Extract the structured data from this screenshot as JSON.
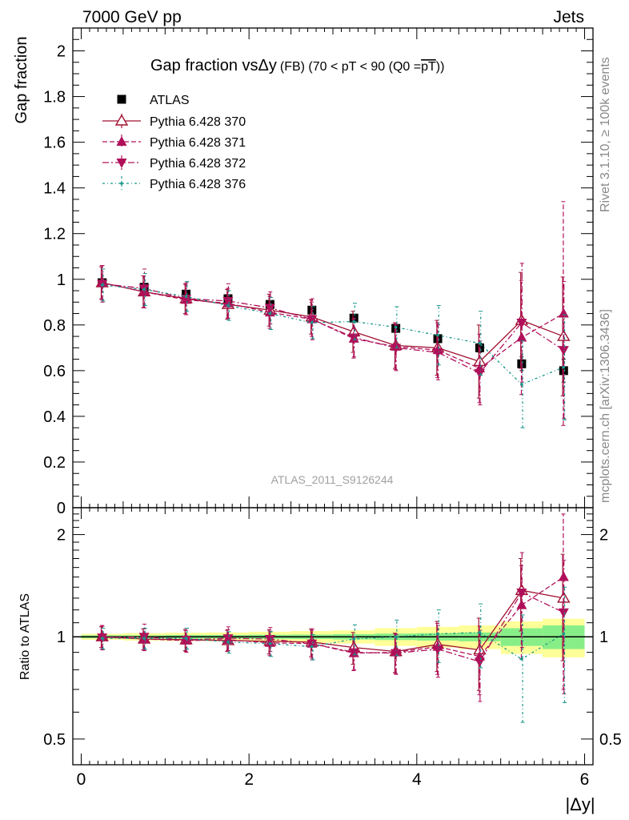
{
  "header": {
    "left": "7000 GeV pp",
    "right": "Jets"
  },
  "side_labels": {
    "rivet": "Rivet 3.1.10, ≥ 100k events",
    "mcplots": "mcplots.cern.ch [arXiv:1306.3436]"
  },
  "watermark": "ATLAS_2011_S9126244",
  "title": {
    "main": "Gap fraction vsΔy",
    "sub": "(FB) (70 < pT <  90 (Q0 =",
    "overlined": "pT",
    "close": "))"
  },
  "legend": [
    "ATLAS",
    "Pythia 6.428 370",
    "Pythia 6.428 371",
    "Pythia 6.428 372",
    "Pythia 6.428 376"
  ],
  "colors": {
    "data": "#000000",
    "p370": "#a01030",
    "p371": "#b0105a",
    "p372": "#b0105a",
    "p376": "#18968a",
    "band_outer": "#ffff99",
    "band_inner": "#88ee88"
  },
  "chart_data": [
    {
      "type": "scatter",
      "ylabel": "Gap fraction",
      "xlim": [
        -0.1,
        6.1
      ],
      "ylim": [
        0,
        2.1
      ],
      "y_ticks": [
        "0",
        "0.2",
        "0.4",
        "0.6",
        "0.8",
        "1",
        "1.2",
        "1.4",
        "1.6",
        "1.8",
        "2"
      ],
      "x": [
        0.25,
        0.75,
        1.25,
        1.75,
        2.25,
        2.75,
        3.25,
        3.75,
        4.25,
        4.75,
        5.25,
        5.75
      ],
      "series": [
        {
          "name": "ATLAS",
          "values": [
            0.985,
            0.965,
            0.935,
            0.915,
            0.89,
            0.865,
            0.83,
            0.785,
            0.74,
            0.7,
            0.63,
            0.6
          ],
          "err": [
            0.01,
            0.01,
            0.01,
            0.01,
            0.01,
            0.01,
            0.012,
            0.012,
            0.015,
            0.02,
            0.03,
            0.05
          ]
        },
        {
          "name": "Pythia 6.428 370",
          "values": [
            0.985,
            0.945,
            0.915,
            0.89,
            0.865,
            0.835,
            0.77,
            0.71,
            0.7,
            0.64,
            0.82,
            0.75
          ],
          "err": [
            0.07,
            0.07,
            0.065,
            0.065,
            0.07,
            0.075,
            0.09,
            0.1,
            0.12,
            0.16,
            0.21,
            0.26
          ]
        },
        {
          "name": "Pythia 6.428 371",
          "values": [
            0.985,
            0.945,
            0.91,
            0.895,
            0.855,
            0.825,
            0.74,
            0.705,
            0.69,
            0.61,
            0.745,
            0.85
          ],
          "err": [
            0.075,
            0.07,
            0.065,
            0.065,
            0.07,
            0.075,
            0.085,
            0.1,
            0.12,
            0.15,
            0.25,
            0.49
          ]
        },
        {
          "name": "Pythia 6.428 372",
          "values": [
            0.98,
            0.96,
            0.915,
            0.905,
            0.875,
            0.825,
            0.745,
            0.7,
            0.68,
            0.59,
            0.81,
            0.69
          ],
          "err": [
            0.08,
            0.085,
            0.07,
            0.075,
            0.07,
            0.09,
            0.085,
            0.1,
            0.12,
            0.14,
            0.26,
            0.3
          ]
        },
        {
          "name": "Pythia 6.428 376",
          "values": [
            0.975,
            0.955,
            0.925,
            0.885,
            0.85,
            0.81,
            0.815,
            0.79,
            0.755,
            0.72,
            0.54,
            0.615
          ],
          "err": [
            0.07,
            0.07,
            0.065,
            0.065,
            0.07,
            0.07,
            0.08,
            0.09,
            0.13,
            0.14,
            0.19,
            0.23
          ]
        }
      ]
    },
    {
      "type": "scatter",
      "ylabel": "Ratio to ATLAS",
      "xlabel": "|Δy|",
      "xlim": [
        -0.1,
        6.1
      ],
      "ylim": [
        0.42,
        2.4
      ],
      "yscale": "log",
      "y_ticks": [
        "0.5",
        "1",
        "2"
      ],
      "x_ticks": [
        "0",
        "2",
        "4",
        "6"
      ],
      "x": [
        0.25,
        0.75,
        1.25,
        1.75,
        2.25,
        2.75,
        3.25,
        3.75,
        4.25,
        4.75,
        5.25,
        5.75
      ],
      "band_inner": [
        0.01,
        0.01,
        0.012,
        0.012,
        0.014,
        0.015,
        0.018,
        0.022,
        0.025,
        0.03,
        0.06,
        0.08
      ],
      "band_outer": [
        0.02,
        0.025,
        0.028,
        0.03,
        0.035,
        0.04,
        0.045,
        0.06,
        0.07,
        0.08,
        0.11,
        0.13
      ],
      "series": [
        {
          "name": "Pythia 6.428 370",
          "values": [
            1.0,
            0.985,
            0.98,
            0.975,
            0.97,
            0.965,
            0.93,
            0.905,
            0.95,
            0.915,
            1.37,
            1.3
          ],
          "err": [
            0.07,
            0.07,
            0.07,
            0.07,
            0.08,
            0.09,
            0.1,
            0.12,
            0.16,
            0.22,
            0.33,
            0.45
          ]
        },
        {
          "name": "Pythia 6.428 371",
          "values": [
            1.0,
            0.985,
            0.975,
            0.98,
            0.96,
            0.955,
            0.895,
            0.9,
            0.935,
            0.875,
            1.24,
            1.5
          ],
          "err": [
            0.08,
            0.07,
            0.07,
            0.07,
            0.08,
            0.09,
            0.1,
            0.12,
            0.16,
            0.2,
            0.38,
            0.8
          ]
        },
        {
          "name": "Pythia 6.428 372",
          "values": [
            0.995,
            1.0,
            0.98,
            0.99,
            0.985,
            0.955,
            0.9,
            0.895,
            0.92,
            0.845,
            1.35,
            1.18
          ],
          "err": [
            0.08,
            0.09,
            0.08,
            0.08,
            0.08,
            0.1,
            0.1,
            0.12,
            0.16,
            0.2,
            0.42,
            0.5
          ]
        },
        {
          "name": "Pythia 6.428 376",
          "values": [
            0.99,
            0.99,
            0.99,
            0.965,
            0.955,
            0.935,
            0.985,
            1.0,
            1.02,
            1.03,
            0.86,
            1.02
          ],
          "err": [
            0.07,
            0.07,
            0.07,
            0.07,
            0.08,
            0.08,
            0.1,
            0.12,
            0.18,
            0.22,
            0.3,
            0.38
          ]
        }
      ]
    }
  ]
}
